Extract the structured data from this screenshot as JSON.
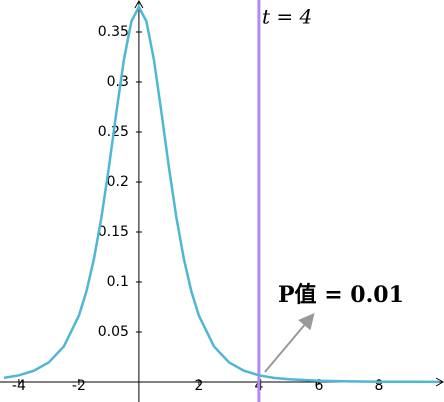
{
  "chart_data": {
    "type": "line",
    "x": [
      -4.5,
      -4,
      -3.5,
      -3,
      -2.5,
      -2,
      -1.75,
      -1.5,
      -1.25,
      -1,
      -0.75,
      -0.5,
      -0.25,
      0,
      0.25,
      0.5,
      0.75,
      1,
      1.25,
      1.5,
      1.75,
      2,
      2.5,
      3,
      3.5,
      4,
      4.5,
      5,
      6,
      7,
      8,
      9,
      10
    ],
    "series": [
      {
        "color": "#4fb6d3",
        "values": [
          0.0041,
          0.0067,
          0.0113,
          0.0197,
          0.0357,
          0.0663,
          0.0905,
          0.1229,
          0.1644,
          0.2147,
          0.2699,
          0.3223,
          0.3607,
          0.375,
          0.3607,
          0.3223,
          0.2699,
          0.2147,
          0.1644,
          0.1229,
          0.0905,
          0.0663,
          0.0357,
          0.0197,
          0.0113,
          0.0067,
          0.0041,
          0.0027,
          0.0012,
          0.0006,
          0.0003,
          0.0002,
          0.0001
        ]
      }
    ],
    "xlim": [
      -4.63,
      10.17
    ],
    "ylim": [
      0,
      0.382
    ],
    "xticks": [
      -4,
      -2,
      2,
      4,
      6,
      8
    ],
    "yticks": [
      0.05,
      0.1,
      0.15,
      0.2,
      0.25,
      0.3,
      0.35
    ],
    "vline": {
      "x": 4,
      "label": "t = 4",
      "color": "#b38af0"
    },
    "annotation": "P值 = 0.01"
  }
}
